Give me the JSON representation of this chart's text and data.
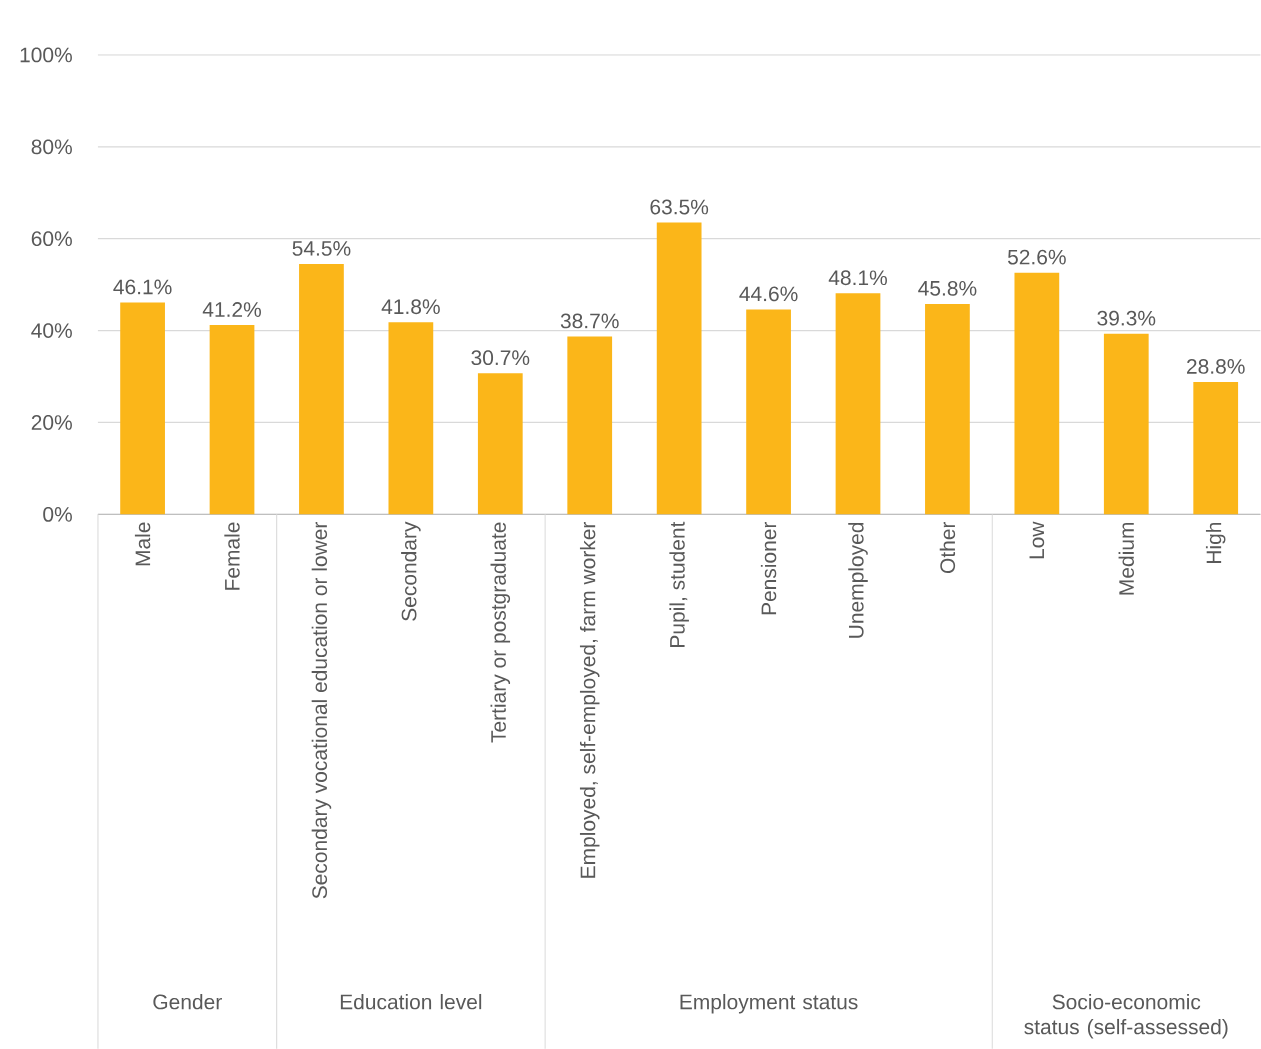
{
  "chart_data": {
    "type": "bar",
    "categories": [
      "Male",
      "Female",
      "Secondary vocational education or lower",
      "Secondary",
      "Tertiary or postgraduate",
      "Employed, self-employed, farm worker",
      "Pupil, student",
      "Pensioner",
      "Unemployed",
      "Other",
      "Low",
      "Medium",
      "High"
    ],
    "values": [
      46.1,
      41.2,
      54.5,
      41.8,
      30.7,
      38.7,
      63.5,
      44.6,
      48.1,
      45.8,
      52.6,
      39.3,
      28.8
    ],
    "value_labels": [
      "46.1%",
      "41.2%",
      "54.5%",
      "41.8%",
      "30.7%",
      "38.7%",
      "63.5%",
      "44.6%",
      "48.1%",
      "45.8%",
      "52.6%",
      "39.3%",
      "28.8%"
    ],
    "color": "#fbb619",
    "ylim": [
      0,
      100
    ],
    "yticks": [
      {
        "value": 0,
        "label": "0%"
      },
      {
        "value": 20,
        "label": "20%"
      },
      {
        "value": 40,
        "label": "40%"
      },
      {
        "value": 60,
        "label": "60%"
      },
      {
        "value": 80,
        "label": "80%"
      },
      {
        "value": 100,
        "label": "100%"
      }
    ],
    "grid": "y",
    "annotations": [
      "Gender",
      "Education level",
      "Employment status",
      "Socio-economic status (self-assessed)"
    ]
  }
}
